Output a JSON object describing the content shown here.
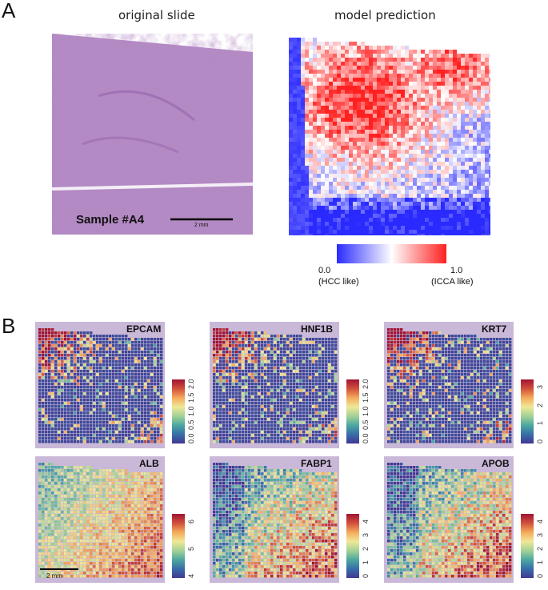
{
  "panel_a": {
    "letter": "A",
    "left_title": "original slide",
    "right_title": "model prediction",
    "sample_label": "Sample #A4",
    "scale_label": "2 mm",
    "legend": {
      "low_value": "0.0",
      "high_value": "1.0",
      "low_caption": "(HCC like)",
      "high_caption": "(ICCA like)",
      "low_color": "#2a2aff",
      "high_color": "#ff2020"
    }
  },
  "panel_b": {
    "letter": "B",
    "scale_label": "2 mm",
    "genes": [
      {
        "name": "EPCAM",
        "ticks": [
          "0.0",
          "0.5",
          "1.0",
          "1.5",
          "2.0"
        ]
      },
      {
        "name": "HNF1B",
        "ticks": [
          "0.0",
          "0.5",
          "1.0",
          "1.5",
          "2.0"
        ]
      },
      {
        "name": "KRT7",
        "ticks": [
          "0",
          "1",
          "2",
          "3"
        ]
      },
      {
        "name": "ALB",
        "ticks": [
          "4",
          "5",
          "6"
        ]
      },
      {
        "name": "FABP1",
        "ticks": [
          "0",
          "1",
          "2",
          "3",
          "4"
        ]
      },
      {
        "name": "APOB",
        "ticks": [
          "0",
          "1",
          "2",
          "3",
          "4"
        ]
      }
    ]
  }
}
